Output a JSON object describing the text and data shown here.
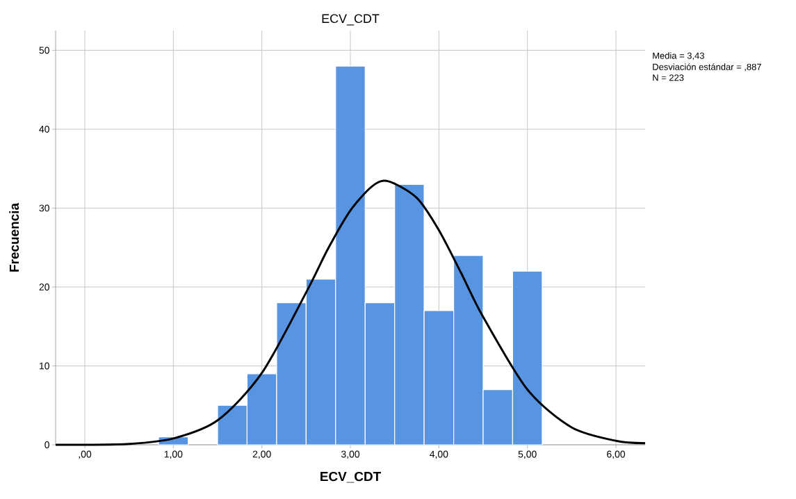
{
  "chart_data": {
    "type": "histogram",
    "title": "ECV_CDT",
    "xlabel": "ECV_CDT",
    "ylabel": "Frecuencia",
    "bins": [
      0.833,
      1.167,
      1.5,
      1.833,
      2.167,
      2.5,
      2.833,
      3.167,
      3.5,
      3.833,
      4.167,
      4.5,
      4.833,
      5.167
    ],
    "values": [
      1,
      0,
      5,
      9,
      18,
      21,
      48,
      18,
      33,
      17,
      24,
      7,
      22
    ],
    "color": "#5795e3",
    "series": [
      {
        "type": "line",
        "color": "#000000",
        "x": [
          -0.33,
          0,
          0.5,
          1,
          1.5,
          2,
          2.5,
          2.75,
          3,
          3.25,
          3.43,
          3.75,
          4,
          4.25,
          4.5,
          5,
          5.5,
          6,
          6.33
        ],
        "values": [
          0.0,
          0.0,
          0.1,
          0.8,
          3.1,
          9.1,
          19.3,
          24.9,
          29.7,
          32.8,
          33.4,
          31.3,
          27.2,
          21.8,
          16.2,
          7.0,
          2.2,
          0.5,
          0.2
        ]
      }
    ],
    "xlim": [
      -0.33,
      6.33
    ],
    "ylim": [
      0,
      52.5
    ],
    "xticks": [
      {
        "value": 0,
        "label": ",00"
      },
      {
        "value": 1,
        "label": "1,00"
      },
      {
        "value": 2,
        "label": "2,00"
      },
      {
        "value": 3,
        "label": "3,00"
      },
      {
        "value": 4,
        "label": "4,00"
      },
      {
        "value": 5,
        "label": "5,00"
      },
      {
        "value": 6,
        "label": "6,00"
      }
    ],
    "yticks": [
      0,
      10,
      20,
      30,
      40,
      50
    ],
    "grid": true,
    "annotations": [
      "Media = 3,43",
      "Desviación estándar = ,887",
      "N = 223"
    ]
  }
}
